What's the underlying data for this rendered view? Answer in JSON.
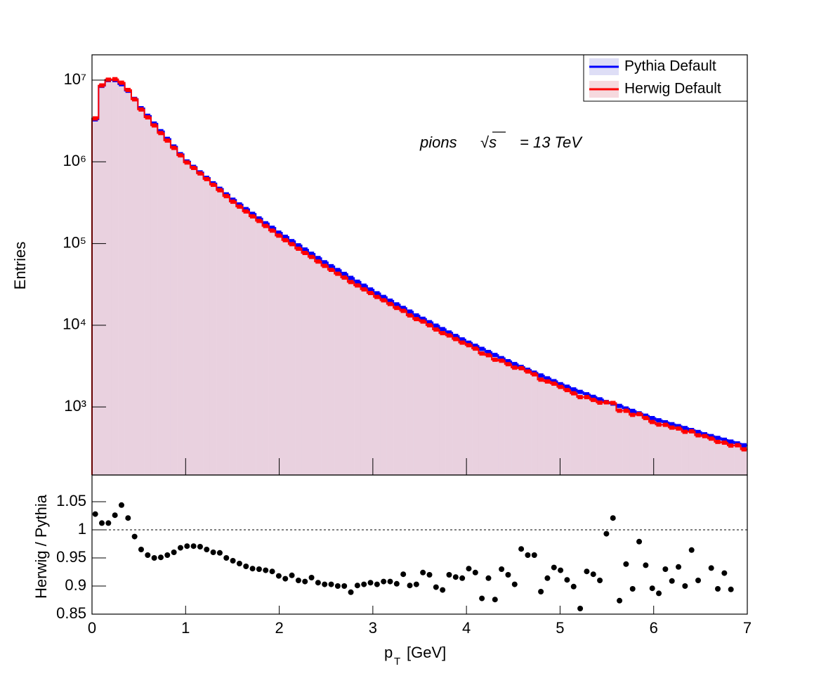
{
  "chart_data": [
    {
      "type": "histogram",
      "ylabel": "Entries",
      "annotation": [
        "pions",
        "√s",
        "= 13 TeV"
      ],
      "logy": true,
      "legend": "top-right",
      "xlim": [
        0,
        7
      ],
      "xticks": [
        0,
        1,
        2,
        3,
        4,
        5,
        6,
        7
      ],
      "ylim": [
        147,
        20400000
      ],
      "yticks": [
        {
          "value": 1000,
          "label": "10³"
        },
        {
          "value": 10000,
          "label": "10⁴"
        },
        {
          "value": 100000,
          "label": "10⁵"
        },
        {
          "value": 1000000,
          "label": "10⁶"
        },
        {
          "value": 10000000,
          "label": "10⁷"
        }
      ],
      "bins": [
        0,
        0.07,
        0.14,
        0.21,
        0.28,
        0.35,
        0.42,
        0.49,
        0.56,
        0.63,
        0.7,
        0.77,
        0.84,
        0.91,
        0.98,
        1.05,
        1.12,
        1.19,
        1.26,
        1.33,
        1.4,
        1.47,
        1.54,
        1.61,
        1.68,
        1.75,
        1.82,
        1.89,
        1.96,
        2.03,
        2.1,
        2.17,
        2.24,
        2.31,
        2.38,
        2.45,
        2.52,
        2.59,
        2.66,
        2.73,
        2.8,
        2.87,
        2.94,
        3.01,
        3.08,
        3.15,
        3.22,
        3.29,
        3.36,
        3.43,
        3.5,
        3.57,
        3.64,
        3.71,
        3.78,
        3.85,
        3.92,
        3.99,
        4.06,
        4.13,
        4.2,
        4.27,
        4.34,
        4.41,
        4.48,
        4.55,
        4.62,
        4.69,
        4.76,
        4.83,
        4.9,
        4.97,
        5.04,
        5.11,
        5.18,
        5.25,
        5.32,
        5.39,
        5.46,
        5.53,
        5.6,
        5.67,
        5.74,
        5.81,
        5.88,
        5.95,
        6.02,
        6.09,
        6.16,
        6.23,
        6.3,
        6.37,
        6.44,
        6.51,
        6.58,
        6.65,
        6.72,
        6.79,
        6.86,
        6.93,
        7
      ],
      "series": [
        {
          "name": "Pythia Default",
          "color": "#0000ff",
          "fill": "#c8c8f0",
          "values": [
            3310000,
            8510000,
            10000000,
            10000000,
            8910000,
            7410000,
            5890000,
            4530000,
            3660000,
            2940000,
            2370000,
            1910000,
            1540000,
            1240000,
            1010000,
            867000,
            743000,
            637000,
            546000,
            468000,
            400000,
            344000,
            301000,
            264000,
            231000,
            203000,
            177000,
            156000,
            136000,
            121000,
            107000,
            95100,
            84500,
            75000,
            66500,
            59000,
            52800,
            47400,
            42500,
            38000,
            34100,
            30500,
            27400,
            24600,
            22200,
            20000,
            18000,
            16300,
            14700,
            13200,
            12000,
            10900,
            9890,
            8970,
            8150,
            7400,
            6710,
            6120,
            5610,
            5140,
            4710,
            4330,
            3960,
            3630,
            3350,
            3090,
            2850,
            2630,
            2430,
            2240,
            2070,
            1900,
            1770,
            1640,
            1530,
            1430,
            1330,
            1240,
            1150,
            1100,
            1030,
            957,
            895,
            836,
            782,
            731,
            687,
            650,
            615,
            583,
            552,
            522,
            494,
            463,
            440,
            418,
            397,
            377,
            358,
            340
          ]
        },
        {
          "name": "Herwig Default",
          "color": "#ff0000",
          "fill": "#f0c0c8",
          "values": [
            3400000,
            8610000,
            10120000,
            10260000,
            9300000,
            7570000,
            5820000,
            4370000,
            3500000,
            2790000,
            2250000,
            1820000,
            1480000,
            1200000,
            981000,
            842000,
            721000,
            615000,
            524000,
            449000,
            380000,
            325000,
            283000,
            247000,
            215000,
            189000,
            164000,
            144000,
            125000,
            110000,
            98300,
            86500,
            76700,
            68600,
            60200,
            53300,
            47700,
            42700,
            38300,
            33800,
            30700,
            27500,
            24800,
            22200,
            20200,
            18200,
            16300,
            15000,
            13200,
            11900,
            11100,
            10000,
            8880,
            8010,
            7500,
            6780,
            6130,
            5700,
            5180,
            4510,
            4300,
            3790,
            3680,
            3340,
            3030,
            2980,
            2720,
            2510,
            2160,
            2050,
            1930,
            1760,
            1610,
            1470,
            1320,
            1320,
            1220,
            1130,
            1140,
            1120,
            900,
            899,
            801,
            818,
            733,
            655,
            609,
            605,
            559,
            545,
            497,
            503,
            450,
            440,
            410,
            374,
            366,
            337,
            340,
            303
          ]
        }
      ]
    },
    {
      "type": "scatter",
      "ylabel": "Herwig / Pythia",
      "xlabel": {
        "main": "p",
        "sub": "T",
        "unit": "[GeV]"
      },
      "xlim": [
        0,
        7
      ],
      "xticks": [
        0,
        1,
        2,
        3,
        4,
        5,
        6,
        7
      ],
      "ylim": [
        0.85,
        1.0975
      ],
      "yticks": [
        0.85,
        0.9,
        0.95,
        1,
        1.05
      ],
      "hline": 1,
      "color": "#000000",
      "x": [
        0.035,
        0.105,
        0.175,
        0.245,
        0.315,
        0.385,
        0.455,
        0.525,
        0.595,
        0.665,
        0.735,
        0.805,
        0.875,
        0.945,
        1.015,
        1.085,
        1.155,
        1.225,
        1.295,
        1.365,
        1.435,
        1.505,
        1.575,
        1.645,
        1.715,
        1.785,
        1.855,
        1.925,
        1.995,
        2.065,
        2.135,
        2.205,
        2.275,
        2.345,
        2.415,
        2.485,
        2.555,
        2.625,
        2.695,
        2.765,
        2.835,
        2.905,
        2.975,
        3.045,
        3.115,
        3.185,
        3.255,
        3.325,
        3.395,
        3.465,
        3.535,
        3.605,
        3.675,
        3.745,
        3.815,
        3.885,
        3.955,
        4.025,
        4.095,
        4.165,
        4.235,
        4.305,
        4.375,
        4.445,
        4.515,
        4.585,
        4.655,
        4.725,
        4.795,
        4.865,
        4.935,
        5.005,
        5.075,
        5.145,
        5.215,
        5.285,
        5.355,
        5.425,
        5.495,
        5.565,
        5.635,
        5.705,
        5.775,
        5.845,
        5.915,
        5.985,
        6.055,
        6.125,
        6.195,
        6.265,
        6.335,
        6.405,
        6.475,
        6.545,
        6.615,
        6.685,
        6.755,
        6.825,
        6.895,
        6.965
      ],
      "values": [
        1.028,
        1.012,
        1.012,
        1.026,
        1.044,
        1.021,
        0.988,
        0.965,
        0.955,
        0.95,
        0.951,
        0.955,
        0.96,
        0.968,
        0.971,
        0.971,
        0.97,
        0.965,
        0.96,
        0.959,
        0.95,
        0.945,
        0.94,
        0.935,
        0.931,
        0.93,
        0.928,
        0.926,
        0.918,
        0.913,
        0.919,
        0.91,
        0.908,
        0.915,
        0.906,
        0.903,
        0.903,
        0.9,
        0.9,
        0.889,
        0.901,
        0.903,
        0.906,
        0.903,
        0.908,
        0.908,
        0.904,
        0.921,
        0.901,
        0.903,
        0.924,
        0.92,
        0.898,
        0.893,
        0.92,
        0.916,
        0.914,
        0.931,
        0.924,
        0.878,
        0.914,
        0.876,
        0.93,
        0.92,
        0.903,
        0.966,
        0.955,
        0.955,
        0.89,
        0.914,
        0.933,
        0.928,
        0.911,
        0.899,
        0.86,
        0.926,
        0.921,
        0.91,
        0.993,
        1.021,
        0.874,
        0.939,
        0.895,
        0.979,
        0.937,
        0.896,
        0.887,
        0.93,
        0.909,
        0.934,
        0.9,
        0.964,
        0.91,
        null,
        0.932,
        0.895,
        0.923,
        0.894,
        null,
        null
      ]
    }
  ]
}
